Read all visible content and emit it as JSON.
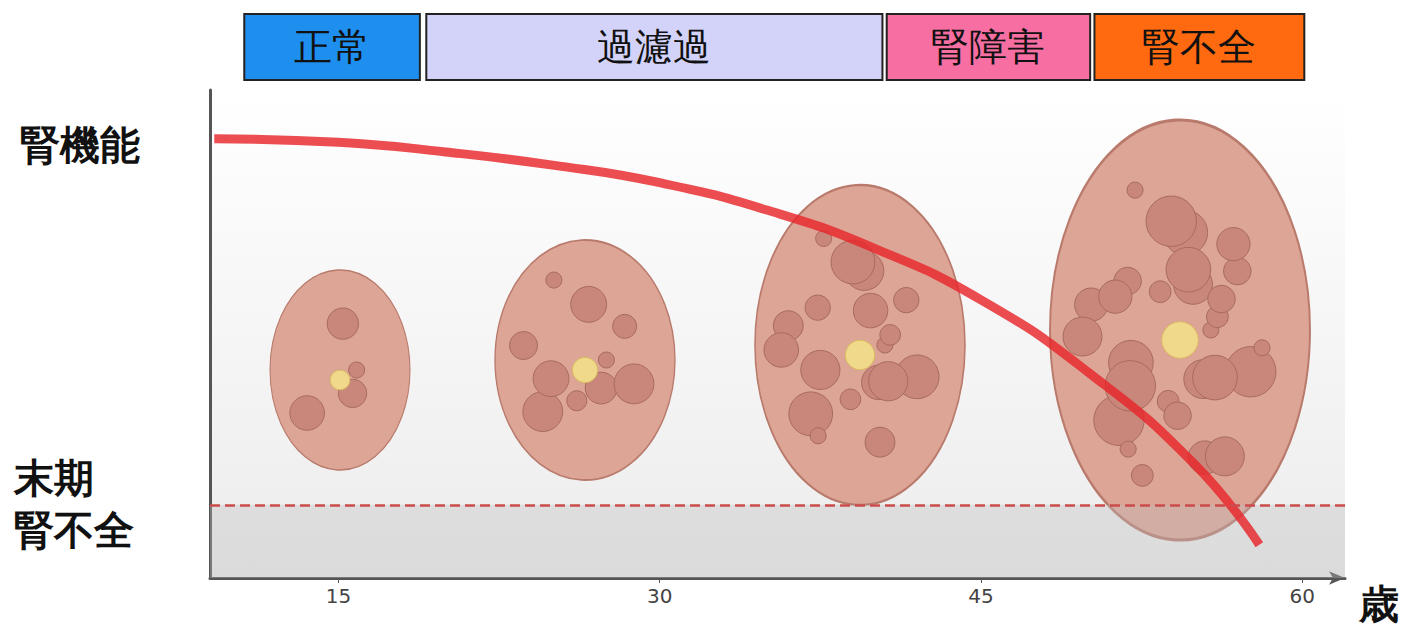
{
  "chart_data": {
    "type": "line",
    "y_label": "腎機能",
    "x_label": "歳",
    "phases": [
      {
        "label": "正常",
        "start": 10.6,
        "end": 18.8,
        "color": "#1e8fef"
      },
      {
        "label": "過濾過",
        "start": 19.1,
        "end": 40.4,
        "color": "#d3d3fa"
      },
      {
        "label": "腎障害",
        "start": 40.6,
        "end": 50.1,
        "color": "#f76fa2"
      },
      {
        "label": "腎不全",
        "start": 50.3,
        "end": 60.1,
        "color": "#ff6a10"
      }
    ],
    "threshold": {
      "value": 15,
      "label": "末期\n腎不全",
      "line_style": "dashed",
      "color": "#cc4c4c"
    },
    "x": [
      9.2,
      15,
      20,
      25,
      30,
      35,
      40,
      45,
      50,
      55,
      58
    ],
    "values": [
      90,
      89.3,
      87.3,
      84.6,
      81,
      75.4,
      67.6,
      57,
      42.2,
      23.2,
      6.8
    ],
    "color": "#e8262b",
    "line_style": "solid",
    "xlim": [
      9,
      62
    ],
    "xticks": [
      15,
      30,
      45,
      60
    ],
    "ylim": [
      0,
      100
    ],
    "yticks": [],
    "tick_labels": "x",
    "grid": false
  }
}
